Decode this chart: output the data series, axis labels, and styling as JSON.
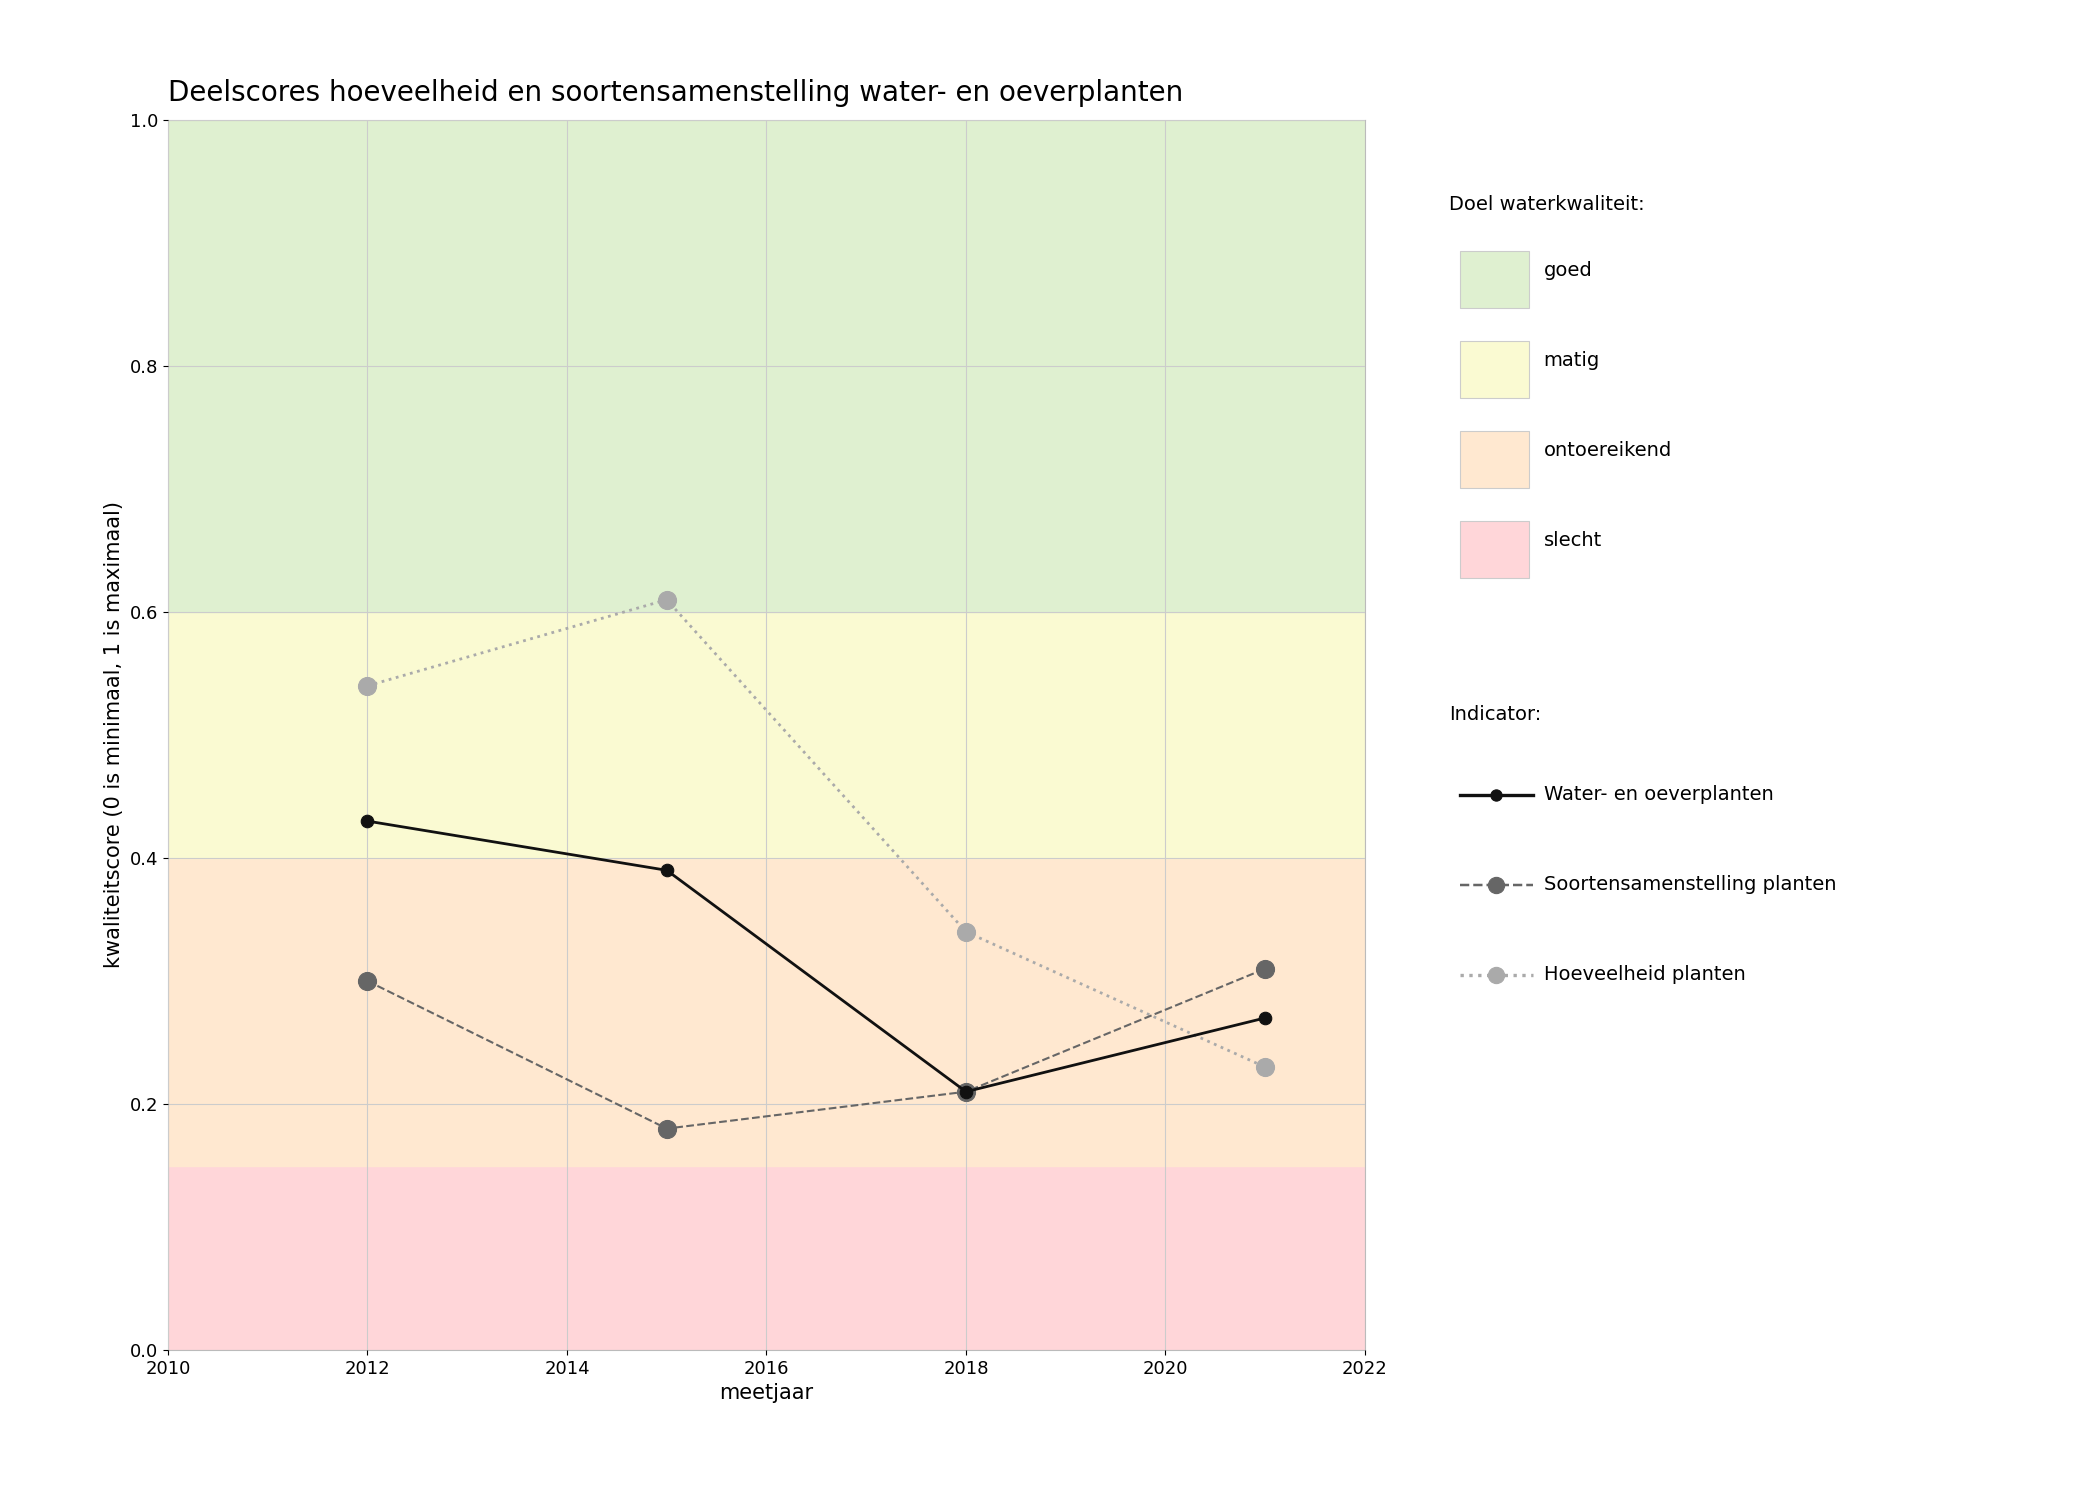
{
  "title": "Deelscores hoeveelheid en soortensamenstelling water- en oeverplanten",
  "xlabel": "meetjaar",
  "ylabel": "kwaliteitscore (0 is minimaal, 1 is maximaal)",
  "xlim": [
    2010,
    2022
  ],
  "ylim": [
    0.0,
    1.0
  ],
  "xticks": [
    2010,
    2012,
    2014,
    2016,
    2018,
    2020,
    2022
  ],
  "yticks": [
    0.0,
    0.2,
    0.4,
    0.6,
    0.8,
    1.0
  ],
  "bg_zones": [
    {
      "ymin": 0.0,
      "ymax": 0.15,
      "color": "#ffd6d9",
      "label": "slecht"
    },
    {
      "ymin": 0.15,
      "ymax": 0.4,
      "color": "#ffe8d0",
      "label": "ontoereikend"
    },
    {
      "ymin": 0.4,
      "ymax": 0.6,
      "color": "#fafad2",
      "label": "matig"
    },
    {
      "ymin": 0.6,
      "ymax": 1.0,
      "color": "#dff0d0",
      "label": "goed"
    }
  ],
  "series": [
    {
      "name": "Water- en oeverplanten",
      "x": [
        2012,
        2015,
        2018,
        2021
      ],
      "y": [
        0.43,
        0.39,
        0.21,
        0.27
      ],
      "color": "#111111",
      "linestyle": "solid",
      "linewidth": 2.0,
      "markersize": 9,
      "markerfacecolor": "#111111",
      "markeredgecolor": "#111111",
      "marker": "o",
      "zorder": 5
    },
    {
      "name": "Soortensamenstelling planten",
      "x": [
        2012,
        2015,
        2018,
        2021
      ],
      "y": [
        0.3,
        0.18,
        0.21,
        0.31
      ],
      "color": "#666666",
      "linestyle": "dashed",
      "linewidth": 1.5,
      "markersize": 13,
      "markerfacecolor": "#666666",
      "markeredgecolor": "#666666",
      "marker": "o",
      "zorder": 4
    },
    {
      "name": "Hoeveelheid planten",
      "x": [
        2012,
        2015,
        2018,
        2021
      ],
      "y": [
        0.54,
        0.61,
        0.34,
        0.23
      ],
      "color": "#aaaaaa",
      "linestyle": "dotted",
      "linewidth": 2.0,
      "markersize": 13,
      "markerfacecolor": "#aaaaaa",
      "markeredgecolor": "#aaaaaa",
      "marker": "o",
      "zorder": 3
    }
  ],
  "legend_quality_title": "Doel waterkwaliteit:",
  "legend_quality_items": [
    {
      "label": "goed",
      "color": "#dff0d0"
    },
    {
      "label": "matig",
      "color": "#fafad2"
    },
    {
      "label": "ontoereikend",
      "color": "#ffe8d0"
    },
    {
      "label": "slecht",
      "color": "#ffd6d9"
    }
  ],
  "legend_indicator_title": "Indicator:",
  "background_color": "#ffffff",
  "grid_color": "#cccccc",
  "title_fontsize": 20,
  "axis_label_fontsize": 15,
  "tick_fontsize": 13,
  "legend_fontsize": 14
}
